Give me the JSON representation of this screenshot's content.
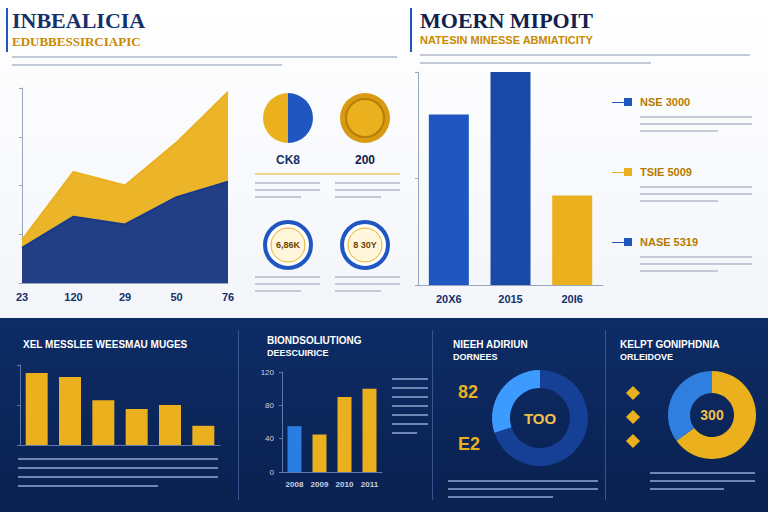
{
  "header": {
    "title": "INBEALICIA",
    "subtitle": "EDUBBESSIRCIAPIC",
    "title2": "MOERN MIPOIT",
    "subtitle2": "NATESIN MINESSE ABMIATICITY"
  },
  "badges": [
    "CK8",
    "200",
    "6,86K",
    "8 30Y"
  ],
  "notes": [
    "NSE 3000",
    "TSIE 5009",
    "NASE 5319"
  ],
  "chart_data": [
    {
      "type": "area",
      "categories": [
        "23",
        "120",
        "29",
        "50",
        "76"
      ],
      "series": [
        {
          "color": "#eab01e",
          "values": [
            22,
            57,
            50,
            72,
            98
          ]
        },
        {
          "color": "#17398a",
          "values": [
            18,
            34,
            30,
            44,
            52
          ]
        }
      ],
      "ylim": [
        0,
        100
      ],
      "yticks": [
        0,
        25,
        50,
        75,
        100
      ],
      "tick_labels": "x",
      "grid": false
    },
    {
      "type": "bar",
      "categories": [
        "20X6",
        "2015",
        "20I6"
      ],
      "values": [
        80,
        100,
        42
      ],
      "colors": [
        "#1f56c0",
        "#1a4aa8",
        "#eab01e"
      ],
      "ylim": [
        0,
        100
      ],
      "yticks": [
        0,
        50,
        100
      ],
      "tick_labels": "x",
      "grid": false
    },
    {
      "type": "bar",
      "title": "XEL MESSLEE WEESMAU MUGES",
      "categories": [
        null,
        null,
        null,
        null,
        null,
        null
      ],
      "values": [
        90,
        85,
        56,
        45,
        50,
        24
      ],
      "color": "#eab01e",
      "ylim": [
        0,
        100
      ],
      "yticks": [
        0,
        50,
        100
      ],
      "tick_labels": false,
      "grid": false
    },
    {
      "type": "bar",
      "title": "BIONDSOLIUTIONG",
      "subtitle": "DEESCUIRICE",
      "categories": [
        "2008",
        "2009",
        "2010",
        "2011"
      ],
      "values": [
        55,
        45,
        90,
        100
      ],
      "colors": [
        "#2a7de1",
        "#eab01e",
        "#eab01e",
        "#eab01e"
      ],
      "ylim": [
        0,
        120
      ],
      "yticks": [
        0,
        40,
        80,
        120
      ],
      "grid": false
    },
    {
      "type": "pie",
      "title": "NIEEH ADIRIUN",
      "subtitle": "DORNEES",
      "values": [
        70,
        30
      ],
      "colors": [
        "#163f96",
        "#3d9bff"
      ],
      "annotations": [
        "TOO",
        "82",
        "E2"
      ]
    },
    {
      "type": "pie",
      "title": "KELPT GONIPHDNIA",
      "subtitle": "ORLEIDOVE",
      "values": [
        65,
        35
      ],
      "colors": [
        "#eab01e",
        "#2f7fe0"
      ],
      "annotations": [
        "300"
      ]
    }
  ]
}
